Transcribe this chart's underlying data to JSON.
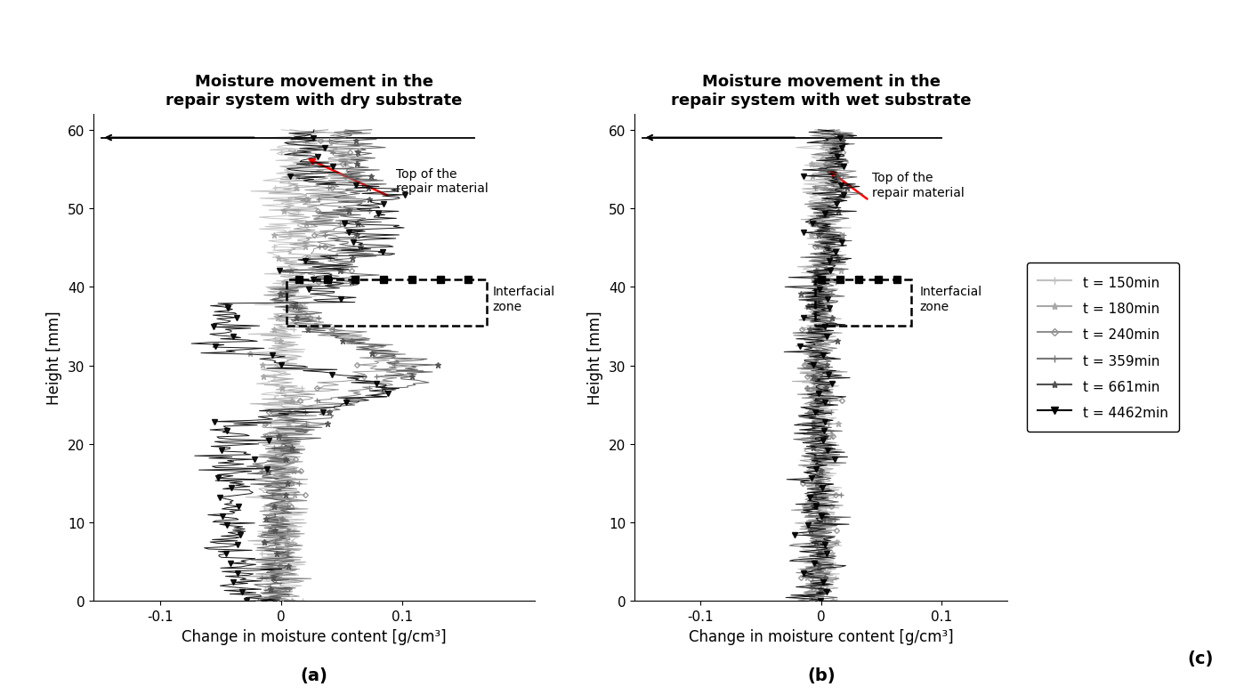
{
  "title_left": "Moisture movement in the\nrepair system with dry substrate",
  "title_right": "Moisture movement in the\nrepair system with wet substrate",
  "xlabel": "Change in moisture content [g/cm³]",
  "ylabel": "Height [mm]",
  "xlim_left": [
    -0.155,
    0.21
  ],
  "xlim_right": [
    -0.155,
    0.155
  ],
  "ylim": [
    0,
    62
  ],
  "xticks_left": [
    -0.1,
    0,
    0.1
  ],
  "xticks_right": [
    -0.1,
    0,
    0.1
  ],
  "yticks": [
    0,
    10,
    20,
    30,
    40,
    50,
    60
  ],
  "label_a": "(a)",
  "label_b": "(b)",
  "label_c": "(c)",
  "series_colors": [
    "#c0c0c0",
    "#a8a8a8",
    "#909090",
    "#787878",
    "#505050",
    "#000000"
  ],
  "series_labels": [
    "t = 150min",
    "t = 180min",
    "t = 240min",
    "t = 359min",
    "t = 661min",
    "t = 4462min"
  ],
  "series_markers": [
    "+",
    "*",
    "D",
    "+",
    "*",
    "v"
  ],
  "series_markersizes": [
    5,
    5,
    3,
    5,
    5,
    5
  ],
  "noise_scale_dry": 0.01,
  "noise_scale_wet": 0.008
}
